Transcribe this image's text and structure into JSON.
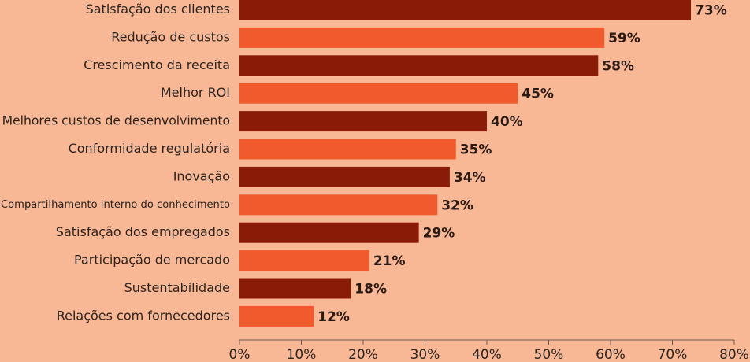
{
  "chart_data": {
    "type": "bar",
    "orientation": "horizontal",
    "categories": [
      "Satisfação dos clientes",
      "Redução de custos",
      "Crescimento da receita",
      "Melhor ROI",
      "Melhores custos de desenvolvimento",
      "Conformidade regulatória",
      "Inovação",
      "Compartilhamento interno do conhecimento",
      "Satisfação dos empregados",
      "Participação de mercado",
      "Sustentabilidade",
      "Relações com fornecedores"
    ],
    "values": [
      73,
      59,
      58,
      45,
      40,
      35,
      34,
      32,
      29,
      21,
      18,
      12
    ],
    "value_labels": [
      "73%",
      "59%",
      "58%",
      "45%",
      "40%",
      "35%",
      "34%",
      "32%",
      "29%",
      "21%",
      "18%",
      "12%"
    ],
    "colors": [
      "#8a1c07",
      "#f05a2c",
      "#8a1c07",
      "#f05a2c",
      "#8a1c07",
      "#f05a2c",
      "#8a1c07",
      "#f05a2c",
      "#8a1c07",
      "#f05a2c",
      "#8a1c07",
      "#f05a2c"
    ],
    "xlim": [
      0,
      80
    ],
    "xticks": [
      {
        "value": 0,
        "label": "0%"
      },
      {
        "value": 10,
        "label": "10%"
      },
      {
        "value": 20,
        "label": "20%"
      },
      {
        "value": 30,
        "label": "30%"
      },
      {
        "value": 40,
        "label": "40%"
      },
      {
        "value": 50,
        "label": "50%"
      },
      {
        "value": 60,
        "label": "60%"
      },
      {
        "value": 70,
        "label": "70%"
      },
      {
        "value": 80,
        "label": "80%"
      }
    ],
    "grid": false
  }
}
